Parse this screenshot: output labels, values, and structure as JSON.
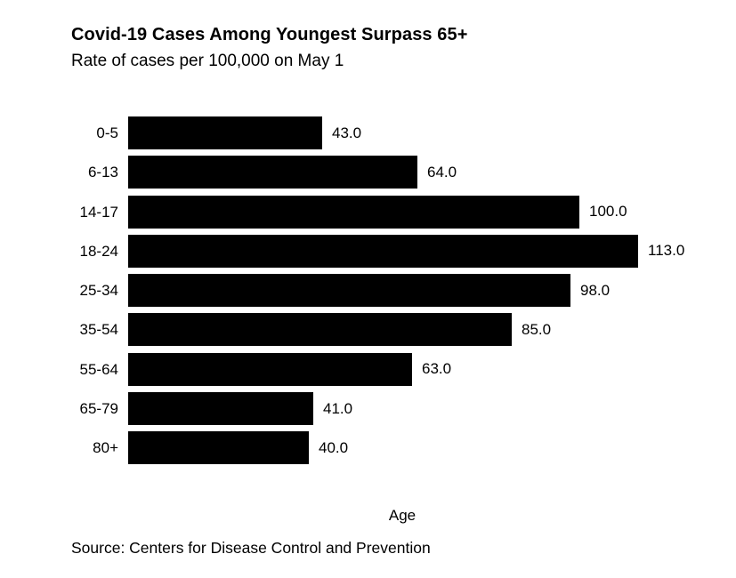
{
  "chart_data": {
    "type": "bar",
    "orientation": "horizontal",
    "title": "Covid-19 Cases Among Youngest Surpass 65+",
    "subtitle": "Rate of cases per 100,000 on May 1",
    "xlabel": "Age",
    "source": "Source: Centers for Disease Control and Prevention",
    "categories": [
      "0-5",
      "6-13",
      "14-17",
      "18-24",
      "25-34",
      "35-54",
      "55-64",
      "65-79",
      "80+"
    ],
    "values": [
      43,
      64,
      100,
      113,
      98,
      85,
      63,
      41,
      40
    ],
    "value_labels": [
      "43.0",
      "64.0",
      "100.0",
      "113.0",
      "98.0",
      "85.0",
      "63.0",
      "41.0",
      "40.0"
    ],
    "xlim": [
      0,
      120
    ],
    "bar_color": "#000000",
    "background_color": "#ffffff",
    "text_color": "#000000",
    "grid": false,
    "legend": false
  }
}
